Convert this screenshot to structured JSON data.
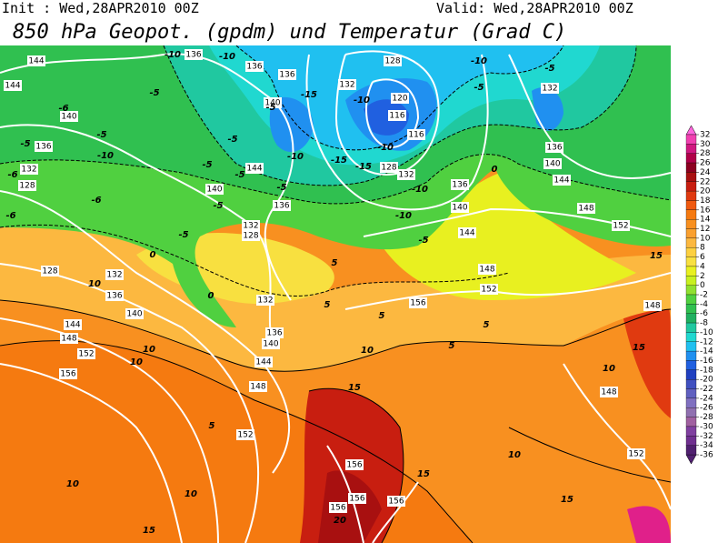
{
  "header": {
    "init": "Init : Wed,28APR2010 00Z",
    "valid": "Valid: Wed,28APR2010 00Z",
    "title": "850 hPa Geopot. (gpdm) und Temperatur (Grad C)"
  },
  "colorbar": {
    "ticks": [
      32,
      30,
      28,
      26,
      24,
      22,
      20,
      18,
      16,
      14,
      12,
      10,
      8,
      6,
      4,
      2,
      0,
      -2,
      -4,
      -6,
      -8,
      -10,
      -12,
      -14,
      -16,
      -18,
      -20,
      -22,
      -24,
      -26,
      -28,
      -30,
      -32,
      -34,
      -36
    ],
    "colors": [
      "#ff66dd",
      "#f040b0",
      "#d01880",
      "#b00048",
      "#8c0020",
      "#a81010",
      "#c81e10",
      "#e03a10",
      "#f05a10",
      "#f57a10",
      "#f89020",
      "#faa030",
      "#fcb840",
      "#fdd040",
      "#f8e040",
      "#e8f020",
      "#c8f020",
      "#90e030",
      "#50d040",
      "#30c050",
      "#20b060",
      "#20c8a0",
      "#20d8d0",
      "#20c0f0",
      "#2090f0",
      "#2060e0",
      "#2040c0",
      "#4050c0",
      "#6060c0",
      "#8070c0",
      "#9070b0",
      "#a060a0",
      "#8040a0",
      "#703090",
      "#502070"
    ]
  },
  "geopotential_labels": [
    144,
    144,
    140,
    136,
    132,
    128,
    136,
    136,
    136,
    140,
    144,
    140,
    136,
    132,
    128,
    132,
    128,
    120,
    116,
    116,
    128,
    132,
    136,
    140,
    144,
    148,
    152,
    156,
    132,
    136,
    140,
    144,
    148,
    152,
    128,
    132,
    136,
    140,
    144,
    148,
    152,
    156,
    136,
    140,
    144,
    148,
    152,
    148,
    148,
    152,
    156,
    156,
    156,
    156,
    132
  ],
  "temperature_labels": [
    -10,
    -10,
    -5,
    -6,
    -5,
    -5,
    -10,
    -6,
    -6,
    -6,
    -5,
    -5,
    -5,
    -5,
    -5,
    -5,
    -5,
    -10,
    -15,
    -10,
    -15,
    -15,
    -10,
    -10,
    -10,
    -5,
    -5,
    -10,
    -5,
    0,
    0,
    0,
    5,
    5,
    5,
    5,
    5,
    10,
    10,
    10,
    15,
    10,
    10,
    15,
    5,
    10,
    10,
    15,
    10,
    15,
    15,
    20,
    15
  ]
}
